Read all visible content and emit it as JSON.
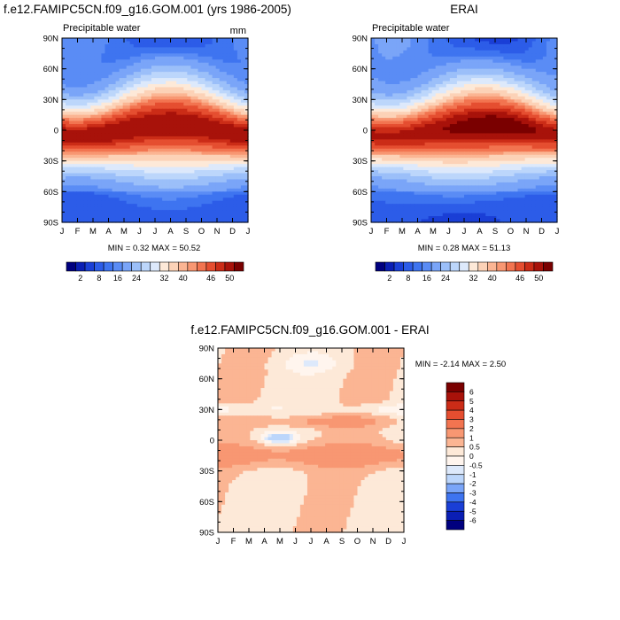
{
  "chart_data": [
    {
      "type": "heatmap",
      "title": "f.e12.FAMIPC5CN.f09_g16.GOM.001 (yrs 1986-2005)",
      "left_label": "Precipitable water",
      "units": "mm",
      "x_ticks": [
        "J",
        "F",
        "M",
        "A",
        "M",
        "J",
        "J",
        "A",
        "S",
        "O",
        "N",
        "D",
        "J"
      ],
      "y_ticks": [
        "90N",
        "60N",
        "30N",
        "0",
        "30S",
        "60S",
        "90S"
      ],
      "stats_text": "MIN =  0.32 MAX =  50.52",
      "colorbar_labels": [
        "2",
        "8",
        "16",
        "24",
        "32",
        "40",
        "46",
        "50"
      ],
      "colors": [
        "#00007f",
        "#0a1eb4",
        "#1a3fd6",
        "#2c5ce8",
        "#3e74f0",
        "#5a8cf5",
        "#7aa5f8",
        "#9bbff9",
        "#bcd6fb",
        "#dde9fb",
        "#fde9d8",
        "#fcd2b7",
        "#fbb593",
        "#f89772",
        "#f27450",
        "#e54e30",
        "#cb2c17",
        "#a8120a",
        "#7a0000"
      ]
    },
    {
      "type": "heatmap",
      "title": "ERAI",
      "left_label": "Precipitable water",
      "x_ticks": [
        "J",
        "F",
        "M",
        "A",
        "M",
        "J",
        "J",
        "A",
        "S",
        "O",
        "N",
        "D",
        "J"
      ],
      "y_ticks": [
        "90N",
        "60N",
        "30N",
        "0",
        "30S",
        "60S",
        "90S"
      ],
      "stats_text": "MIN =  0.28 MAX =  51.13",
      "colorbar_labels": [
        "2",
        "8",
        "16",
        "24",
        "32",
        "40",
        "46",
        "50"
      ]
    },
    {
      "type": "heatmap",
      "title": "f.e12.FAMIPC5CN.f09_g16.GOM.001 - ERAI",
      "x_ticks": [
        "J",
        "F",
        "M",
        "A",
        "M",
        "J",
        "J",
        "A",
        "S",
        "O",
        "N",
        "D",
        "J"
      ],
      "y_ticks": [
        "90N",
        "60N",
        "30N",
        "0",
        "30S",
        "60S",
        "90S"
      ],
      "stats_text": "MIN =  -2.14 MAX =   2.50",
      "colorbar_labels": [
        "6",
        "5",
        "4",
        "3",
        "2",
        "1",
        "0.5",
        "0",
        "-0.5",
        "-1",
        "-2",
        "-3",
        "-4",
        "-5",
        "-6"
      ],
      "colors": [
        "#7a0000",
        "#a8120a",
        "#cb2c17",
        "#e54e30",
        "#f27450",
        "#f89772",
        "#fbb593",
        "#fde9d8",
        "#fff5ee",
        "#dde9fb",
        "#bcd6fb",
        "#7aa5f8",
        "#3e74f0",
        "#1a3fd6",
        "#0a1eb4",
        "#00007f"
      ]
    }
  ]
}
